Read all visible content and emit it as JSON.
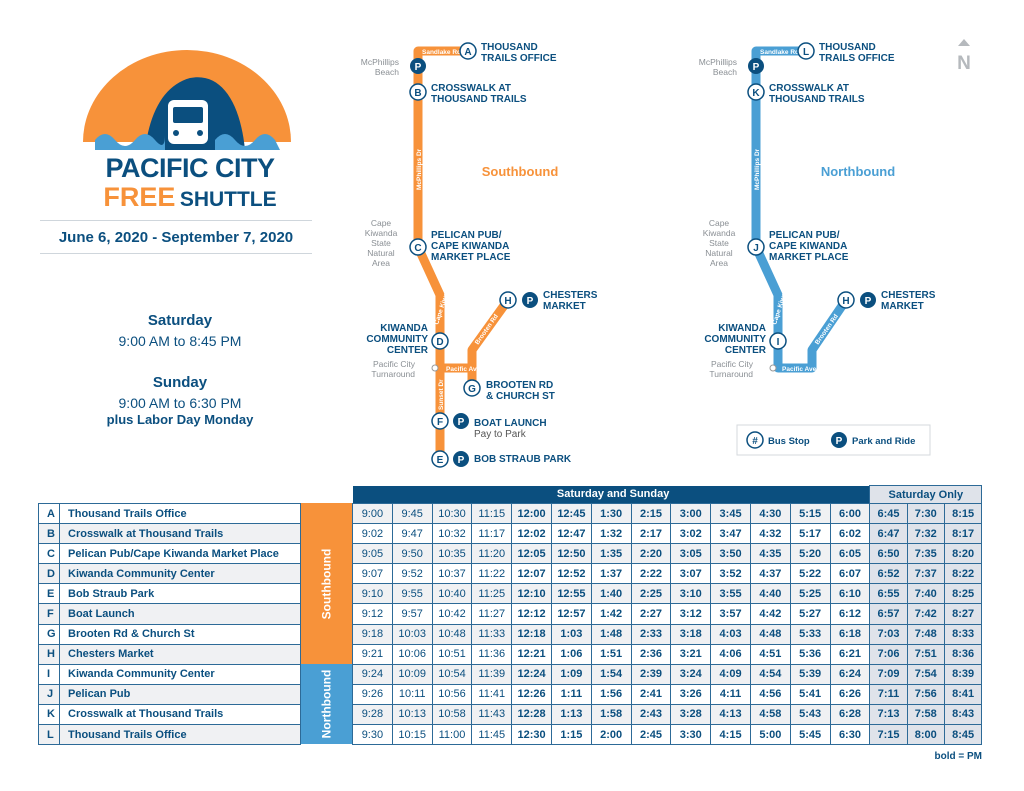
{
  "colors": {
    "navy": "#0b4f7f",
    "orange": "#f7923a",
    "light_blue": "#4a9fd4"
  },
  "logo": {
    "line1": "PACIFIC CITY",
    "free": "FREE",
    "shuttle": "SHUTTLE"
  },
  "dates": "June 6, 2020 - September 7, 2020",
  "service": {
    "saturday_label": "Saturday",
    "saturday_hours": "9:00 AM to 8:45 PM",
    "sunday_label": "Sunday",
    "sunday_hours": "9:00 AM to 6:30 PM",
    "sunday_note": "plus Labor Day Monday"
  },
  "maps": {
    "southbound": {
      "title": "Southbound",
      "stops": {
        "A": {
          "letter": "A",
          "lines": [
            "THOUSAND",
            "TRAILS OFFICE"
          ]
        },
        "B": {
          "letter": "B",
          "lines": [
            "CROSSWALK AT",
            "THOUSAND TRAILS"
          ]
        },
        "C": {
          "letter": "C",
          "lines": [
            "PELICAN PUB/",
            "CAPE KIWANDA",
            "MARKET PLACE"
          ]
        },
        "D": {
          "letter": "D",
          "lines": [
            "KIWANDA",
            "COMMUNITY",
            "CENTER"
          ]
        },
        "H": {
          "letter": "H",
          "lines": [
            "CHESTERS",
            "MARKET"
          ]
        },
        "G": {
          "letter": "G",
          "lines": [
            "BROOTEN RD",
            "& CHURCH ST"
          ]
        },
        "F": {
          "letter": "F",
          "lines": [
            "BOAT LAUNCH"
          ],
          "note": "Pay to Park"
        },
        "E": {
          "letter": "E",
          "lines": [
            "BOB STRAUB PARK"
          ]
        }
      }
    },
    "northbound": {
      "title": "Northbound",
      "stops": {
        "L": {
          "letter": "L",
          "lines": [
            "THOUSAND",
            "TRAILS OFFICE"
          ]
        },
        "K": {
          "letter": "K",
          "lines": [
            "CROSSWALK AT",
            "THOUSAND TRAILS"
          ]
        },
        "J": {
          "letter": "J",
          "lines": [
            "PELICAN PUB/",
            "CAPE KIWANDA",
            "MARKET PLACE"
          ]
        },
        "I": {
          "letter": "I",
          "lines": [
            "KIWANDA",
            "COMMUNITY",
            "CENTER"
          ]
        },
        "H": {
          "letter": "H",
          "lines": [
            "CHESTERS",
            "MARKET"
          ]
        }
      }
    },
    "places": {
      "beach": [
        "McPhillips",
        "Beach"
      ],
      "cape": [
        "Cape",
        "Kiwanda",
        "State",
        "Natural",
        "Area"
      ],
      "turnaround": [
        "Pacific City",
        "Turnaround"
      ]
    },
    "roads": {
      "sandlake": "Sandlake Rd",
      "mcphillips": "McPhillips Dr",
      "cape_kiwanda": "Cape Kiwanda Dr",
      "pacific": "Pacific Ave",
      "sunset": "Sunset Dr",
      "brooten": "Brooten Rd"
    },
    "park_symbol": "P",
    "north": "N",
    "legend": {
      "stop_symbol": "#",
      "stop_label": "Bus Stop",
      "park_symbol": "P",
      "park_label": "Park and Ride"
    }
  },
  "schedule": {
    "header_weekend": "Saturday and Sunday",
    "header_saturday": "Saturday Only",
    "directions": [
      "Southbound",
      "Northbound"
    ],
    "note": "bold = PM",
    "rows": [
      {
        "letter": "A",
        "stop": "Thousand Trails Office",
        "times": [
          "9:00",
          "9:45",
          "10:30",
          "11:15",
          "12:00",
          "12:45",
          "1:30",
          "2:15",
          "3:00",
          "3:45",
          "4:30",
          "5:15",
          "6:00"
        ],
        "sat": [
          "6:45",
          "7:30",
          "8:15"
        ]
      },
      {
        "letter": "B",
        "stop": "Crosswalk at Thousand Trails",
        "times": [
          "9:02",
          "9:47",
          "10:32",
          "11:17",
          "12:02",
          "12:47",
          "1:32",
          "2:17",
          "3:02",
          "3:47",
          "4:32",
          "5:17",
          "6:02"
        ],
        "sat": [
          "6:47",
          "7:32",
          "8:17"
        ]
      },
      {
        "letter": "C",
        "stop": "Pelican Pub/Cape Kiwanda Market Place",
        "times": [
          "9:05",
          "9:50",
          "10:35",
          "11:20",
          "12:05",
          "12:50",
          "1:35",
          "2:20",
          "3:05",
          "3:50",
          "4:35",
          "5:20",
          "6:05"
        ],
        "sat": [
          "6:50",
          "7:35",
          "8:20"
        ]
      },
      {
        "letter": "D",
        "stop": "Kiwanda Community Center",
        "times": [
          "9:07",
          "9:52",
          "10:37",
          "11:22",
          "12:07",
          "12:52",
          "1:37",
          "2:22",
          "3:07",
          "3:52",
          "4:37",
          "5:22",
          "6:07"
        ],
        "sat": [
          "6:52",
          "7:37",
          "8:22"
        ]
      },
      {
        "letter": "E",
        "stop": "Bob Straub Park",
        "times": [
          "9:10",
          "9:55",
          "10:40",
          "11:25",
          "12:10",
          "12:55",
          "1:40",
          "2:25",
          "3:10",
          "3:55",
          "4:40",
          "5:25",
          "6:10"
        ],
        "sat": [
          "6:55",
          "7:40",
          "8:25"
        ]
      },
      {
        "letter": "F",
        "stop": "Boat Launch",
        "times": [
          "9:12",
          "9:57",
          "10:42",
          "11:27",
          "12:12",
          "12:57",
          "1:42",
          "2:27",
          "3:12",
          "3:57",
          "4:42",
          "5:27",
          "6:12"
        ],
        "sat": [
          "6:57",
          "7:42",
          "8:27"
        ]
      },
      {
        "letter": "G",
        "stop": "Brooten Rd & Church St",
        "times": [
          "9:18",
          "10:03",
          "10:48",
          "11:33",
          "12:18",
          "1:03",
          "1:48",
          "2:33",
          "3:18",
          "4:03",
          "4:48",
          "5:33",
          "6:18"
        ],
        "sat": [
          "7:03",
          "7:48",
          "8:33"
        ]
      },
      {
        "letter": "H",
        "stop": "Chesters Market",
        "times": [
          "9:21",
          "10:06",
          "10:51",
          "11:36",
          "12:21",
          "1:06",
          "1:51",
          "2:36",
          "3:21",
          "4:06",
          "4:51",
          "5:36",
          "6:21"
        ],
        "sat": [
          "7:06",
          "7:51",
          "8:36"
        ]
      },
      {
        "letter": "I",
        "stop": "Kiwanda Community Center",
        "times": [
          "9:24",
          "10:09",
          "10:54",
          "11:39",
          "12:24",
          "1:09",
          "1:54",
          "2:39",
          "3:24",
          "4:09",
          "4:54",
          "5:39",
          "6:24"
        ],
        "sat": [
          "7:09",
          "7:54",
          "8:39"
        ]
      },
      {
        "letter": "J",
        "stop": "Pelican Pub",
        "times": [
          "9:26",
          "10:11",
          "10:56",
          "11:41",
          "12:26",
          "1:11",
          "1:56",
          "2:41",
          "3:26",
          "4:11",
          "4:56",
          "5:41",
          "6:26"
        ],
        "sat": [
          "7:11",
          "7:56",
          "8:41"
        ]
      },
      {
        "letter": "K",
        "stop": "Crosswalk at Thousand Trails",
        "times": [
          "9:28",
          "10:13",
          "10:58",
          "11:43",
          "12:28",
          "1:13",
          "1:58",
          "2:43",
          "3:28",
          "4:13",
          "4:58",
          "5:43",
          "6:28"
        ],
        "sat": [
          "7:13",
          "7:58",
          "8:43"
        ]
      },
      {
        "letter": "L",
        "stop": "Thousand Trails Office",
        "times": [
          "9:30",
          "10:15",
          "11:00",
          "11:45",
          "12:30",
          "1:15",
          "2:00",
          "2:45",
          "3:30",
          "4:15",
          "5:00",
          "5:45",
          "6:30"
        ],
        "sat": [
          "7:15",
          "8:00",
          "8:45"
        ]
      }
    ]
  }
}
